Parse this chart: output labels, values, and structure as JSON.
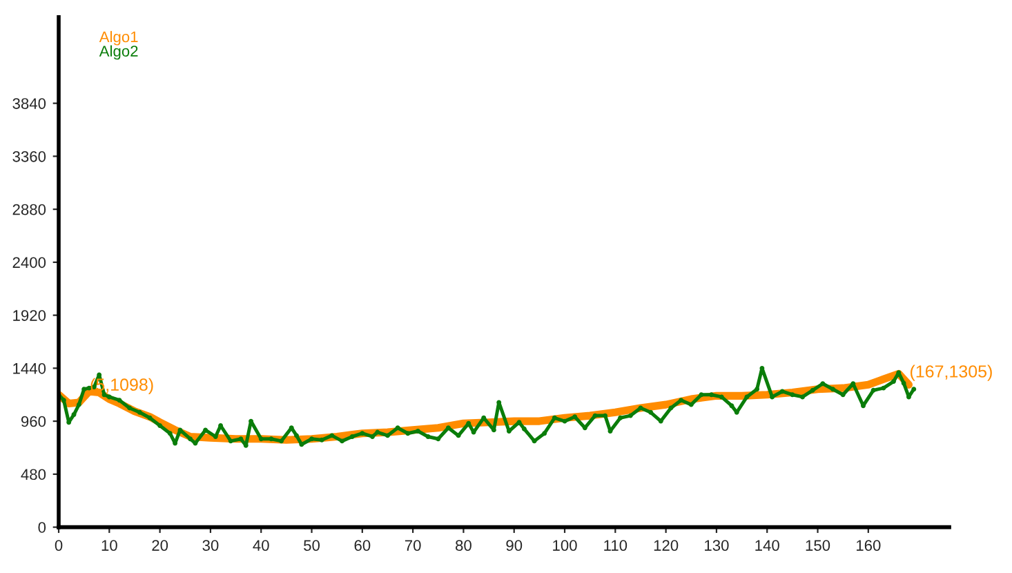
{
  "chart_data": {
    "type": "line",
    "xlim": [
      0,
      176
    ],
    "xticks": [
      0,
      10,
      20,
      30,
      40,
      50,
      60,
      70,
      80,
      90,
      100,
      110,
      120,
      130,
      140,
      150,
      160
    ],
    "ylim": [
      0,
      4620
    ],
    "yticks": [
      0,
      480,
      960,
      1440,
      1920,
      2400,
      2880,
      3360,
      3840
    ],
    "grid": false,
    "legend": "top left",
    "marker": "circle",
    "annotations": [
      {
        "text": "(5,1098)",
        "x": 5,
        "y": 1098
      },
      {
        "text": "(167,1305)",
        "x": 167,
        "y": 1305
      }
    ],
    "series": [
      {
        "name": "Algo1",
        "color": "#ff8c00",
        "x": [
          0,
          2,
          4,
          6,
          8,
          10,
          12,
          15,
          18,
          20,
          23,
          26,
          30,
          35,
          40,
          45,
          50,
          55,
          60,
          65,
          70,
          75,
          80,
          85,
          90,
          95,
          100,
          105,
          110,
          115,
          120,
          125,
          130,
          135,
          140,
          145,
          150,
          155,
          160,
          163,
          166,
          168
        ],
        "values": [
          1200,
          1120,
          1130,
          1230,
          1220,
          1160,
          1120,
          1050,
          1000,
          950,
          880,
          820,
          810,
          800,
          800,
          790,
          800,
          820,
          850,
          860,
          880,
          900,
          940,
          950,
          960,
          960,
          990,
          1010,
          1040,
          1080,
          1110,
          1160,
          1190,
          1190,
          1200,
          1220,
          1250,
          1260,
          1290,
          1340,
          1390,
          1290
        ]
      },
      {
        "name": "Algo2",
        "color": "#0a7d0a",
        "x": [
          0,
          1,
          2,
          3,
          4,
          5,
          6,
          7,
          8,
          9,
          10,
          12,
          14,
          16,
          18,
          20,
          22,
          23,
          24,
          26,
          27,
          29,
          31,
          32,
          34,
          36,
          37,
          38,
          40,
          42,
          44,
          46,
          47,
          48,
          50,
          52,
          54,
          56,
          58,
          60,
          62,
          63,
          65,
          67,
          69,
          71,
          73,
          75,
          77,
          79,
          81,
          82,
          84,
          86,
          87,
          89,
          91,
          92,
          94,
          96,
          98,
          100,
          102,
          104,
          106,
          108,
          109,
          111,
          113,
          115,
          117,
          119,
          121,
          123,
          125,
          127,
          129,
          131,
          133,
          134,
          136,
          138,
          139,
          141,
          143,
          145,
          147,
          149,
          151,
          153,
          155,
          157,
          159,
          161,
          163,
          165,
          166,
          167,
          168,
          169
        ],
        "values": [
          1200,
          1150,
          950,
          1020,
          1110,
          1250,
          1260,
          1270,
          1380,
          1200,
          1180,
          1150,
          1080,
          1040,
          990,
          920,
          850,
          760,
          880,
          800,
          760,
          880,
          820,
          920,
          780,
          800,
          740,
          960,
          800,
          800,
          780,
          900,
          830,
          750,
          800,
          790,
          830,
          780,
          820,
          850,
          820,
          860,
          830,
          900,
          850,
          870,
          820,
          800,
          900,
          830,
          940,
          860,
          990,
          880,
          1130,
          870,
          950,
          890,
          780,
          850,
          990,
          960,
          1000,
          900,
          1010,
          1010,
          870,
          990,
          1010,
          1080,
          1040,
          960,
          1080,
          1150,
          1110,
          1200,
          1200,
          1180,
          1100,
          1040,
          1180,
          1250,
          1440,
          1180,
          1230,
          1200,
          1180,
          1240,
          1300,
          1250,
          1200,
          1300,
          1100,
          1240,
          1260,
          1320,
          1400,
          1305,
          1180,
          1250
        ]
      }
    ]
  }
}
